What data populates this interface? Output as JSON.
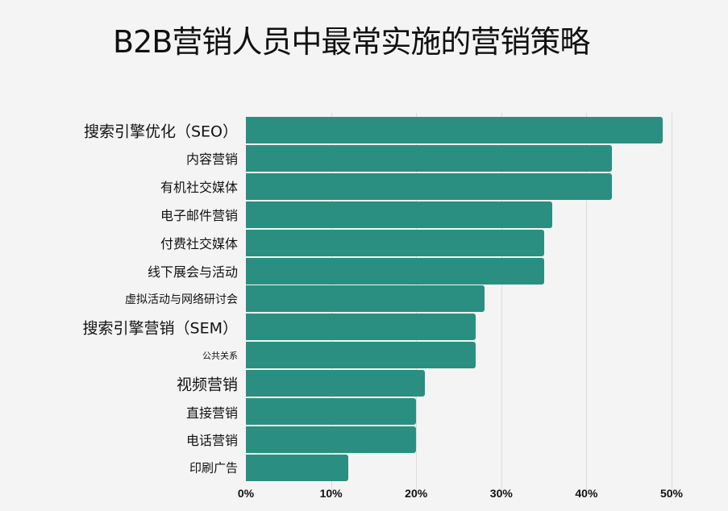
{
  "title": "B2B营销人员中最常实施的营销策略",
  "chart_data": {
    "type": "bar",
    "orientation": "horizontal",
    "title": "B2B营销人员中最常实施的营销策略",
    "xlabel": "",
    "ylabel": "",
    "xlim": [
      0,
      50
    ],
    "x_ticks": [
      "0%",
      "10%",
      "20%",
      "30%",
      "40%",
      "50%"
    ],
    "grid": true,
    "bar_color": "#2a8f80",
    "categories": [
      "搜索引擎优化（SEO）",
      "内容营销",
      "有机社交媒体",
      "电子邮件营销",
      "付费社交媒体",
      "线下展会与活动",
      "虚拟活动与网络研讨会",
      "搜索引擎营销（SEM）",
      "公共关系",
      "视频营销",
      "直接营销",
      "电话营销",
      "印刷广告"
    ],
    "values": [
      49,
      43,
      43,
      36,
      35,
      35,
      28,
      27,
      27,
      21,
      20,
      20,
      12
    ],
    "unit": "%"
  }
}
